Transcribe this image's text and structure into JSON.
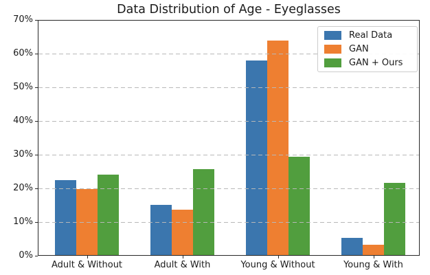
{
  "chart_data": {
    "type": "bar",
    "title": "Data Distribution of Age - Eyeglasses",
    "categories": [
      "Adult & Without",
      "Adult & With",
      "Young & Without",
      "Young & With"
    ],
    "series": [
      {
        "name": "Real Data",
        "color": "#3b76ae",
        "values": [
          22.2,
          14.8,
          57.7,
          5.1
        ]
      },
      {
        "name": "GAN",
        "color": "#ee7f31",
        "values": [
          19.5,
          13.5,
          63.7,
          3.1
        ]
      },
      {
        "name": "GAN + Ours",
        "color": "#519e3e",
        "values": [
          23.8,
          25.5,
          29.2,
          21.5
        ]
      }
    ],
    "xlabel": "",
    "ylabel": "",
    "ylim": [
      0,
      70
    ],
    "ytick_labels": [
      "0%",
      "10%",
      "20%",
      "30%",
      "40%",
      "50%",
      "60%",
      "70%"
    ],
    "grid": "horizontal-dashed-over-bars",
    "gridline_color": "#b8b8b8",
    "legend_position": "upper-right",
    "legend_entries": [
      "Real Data",
      "GAN",
      "GAN + Ours"
    ]
  }
}
